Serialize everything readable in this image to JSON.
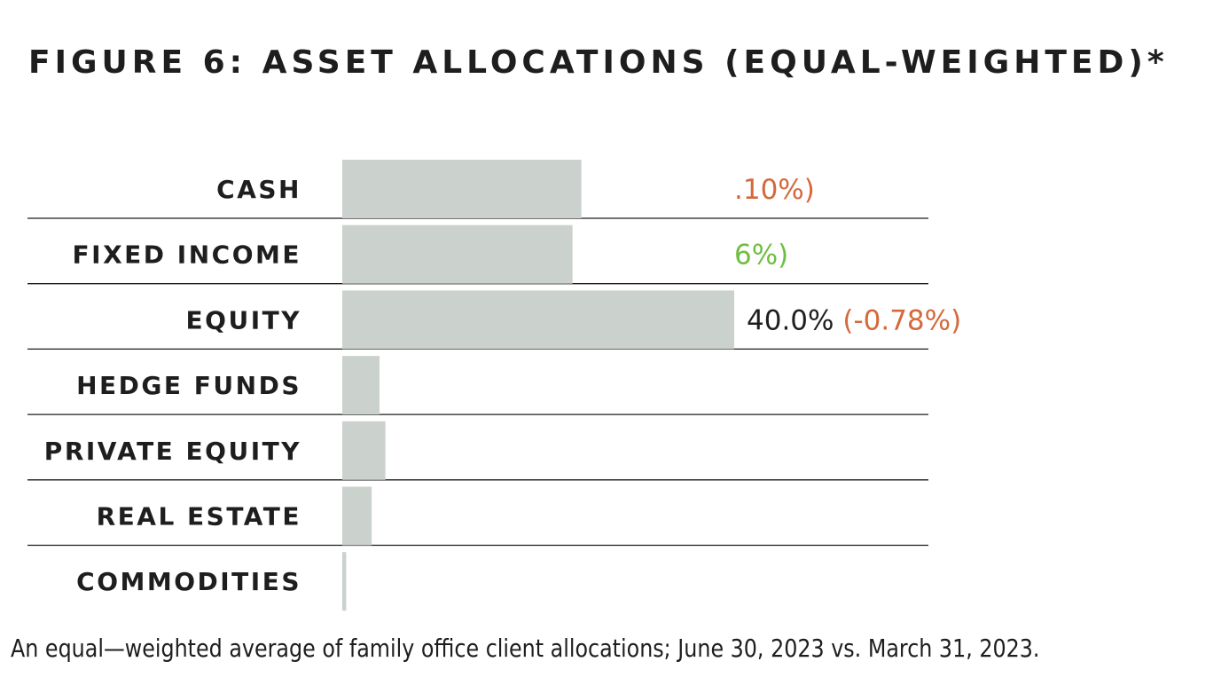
{
  "title": "FIGURE 6: ASSET ALLOCATIONS (EQUAL-WEIGHTED)*",
  "caption": "An equal—weighted average of family office client allocations; June 30, 2023 vs. March 31, 2023.",
  "colors": {
    "bar": "#cbd1cd",
    "gridline": "#1e1e1e",
    "text": "#1e1e1e",
    "negative_change": "#d4693c",
    "positive_change": "#6fbf3f"
  },
  "chart_data": {
    "type": "bar",
    "orientation": "horizontal",
    "title": "FIGURE 6: ASSET ALLOCATIONS (EQUAL-WEIGHTED)*",
    "categories": [
      "CASH",
      "FIXED INCOME",
      "EQUITY",
      "HEDGE FUNDS",
      "PRIVATE EQUITY",
      "REAL ESTATE",
      "COMMODITIES"
    ],
    "values": [
      24.4,
      23.5,
      40.0,
      3.8,
      4.4,
      3.0,
      0.4
    ],
    "xlim": [
      0,
      60
    ],
    "grid": false,
    "data_labels": [
      {
        "value": "",
        "change": ".10%)",
        "change_sign": "negative"
      },
      {
        "value": "",
        "change": "6%)",
        "change_sign": "positive"
      },
      {
        "value": "40.0%",
        "change": "(-0.78%)",
        "change_sign": "negative"
      },
      {
        "value": "",
        "change": "",
        "change_sign": ""
      },
      {
        "value": "",
        "change": "",
        "change_sign": ""
      },
      {
        "value": "",
        "change": "",
        "change_sign": ""
      },
      {
        "value": "",
        "change": "",
        "change_sign": ""
      }
    ]
  }
}
